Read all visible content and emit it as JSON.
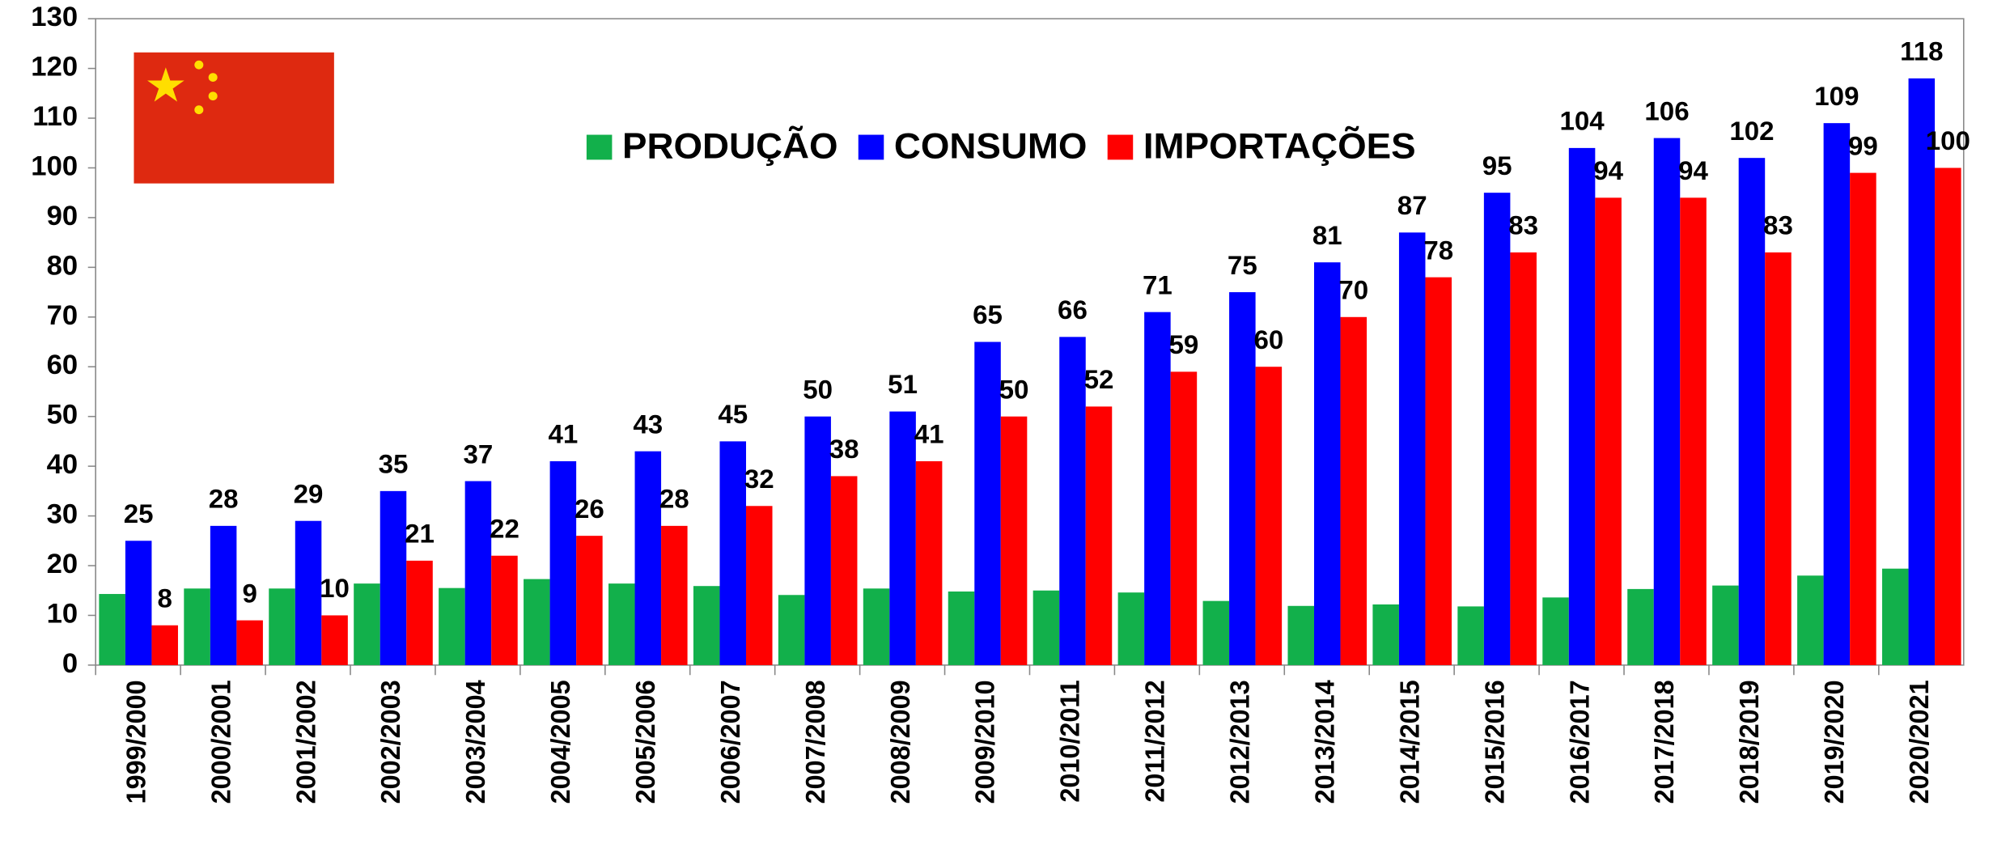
{
  "chart_data": {
    "type": "bar",
    "categories": [
      "1999/2000",
      "2000/2001",
      "2001/2002",
      "2002/2003",
      "2003/2004",
      "2004/2005",
      "2005/2006",
      "2006/2007",
      "2007/2008",
      "2008/2009",
      "2009/2010",
      "2010/2011",
      "2011/2012",
      "2012/2013",
      "2013/2014",
      "2014/2015",
      "2015/2016",
      "2016/2017",
      "2017/2018",
      "2018/2019",
      "2019/2020",
      "2020/2021"
    ],
    "series": [
      {
        "name": "PRODUÇÃO",
        "color": "#12b04b",
        "values": [
          14.3,
          15.4,
          15.4,
          16.4,
          15.5,
          17.3,
          16.4,
          15.9,
          14.1,
          15.4,
          14.8,
          15.0,
          14.6,
          12.9,
          11.9,
          12.2,
          11.8,
          13.6,
          15.3,
          16.0,
          18.0,
          19.4
        ]
      },
      {
        "name": "CONSUMO",
        "color": "#0000ff",
        "values": [
          25,
          28,
          29,
          35,
          37,
          41,
          43,
          45,
          50,
          51,
          65,
          66,
          71,
          75,
          81,
          87,
          95,
          104,
          106,
          102,
          109,
          118
        ]
      },
      {
        "name": "IMPORTAÇÕES",
        "color": "#ff0000",
        "values": [
          8,
          9,
          10,
          21,
          22,
          26,
          28,
          32,
          38,
          41,
          50,
          52,
          59,
          60,
          70,
          78,
          83,
          94,
          94,
          83,
          99,
          100
        ]
      }
    ],
    "labeled_series": [
      1,
      2
    ],
    "ylim": [
      0,
      130
    ],
    "yticks": [
      0,
      10,
      20,
      30,
      40,
      50,
      60,
      70,
      80,
      90,
      100,
      110,
      120,
      130
    ],
    "grid": false
  }
}
